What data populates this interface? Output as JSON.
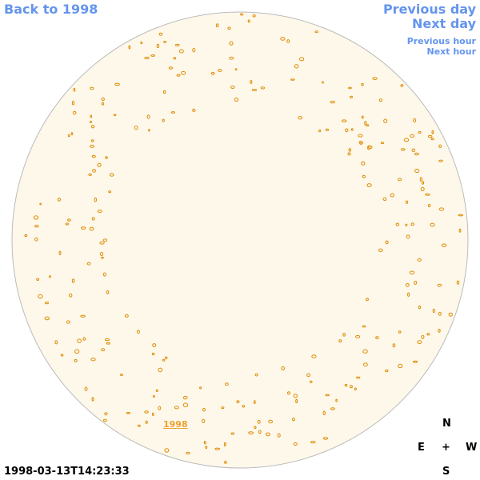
{
  "nav": {
    "back": "Back to 1998",
    "previous_day": "Previous day",
    "next_day": "Next day",
    "previous_hour": "Previous hour",
    "next_hour": "Next hour"
  },
  "image": {
    "year_link": "1998",
    "timestamp": "1998-03-13T14:23:33"
  },
  "compass": {
    "north": "N",
    "east": "E",
    "center": "+",
    "west": "W",
    "south": "S"
  }
}
